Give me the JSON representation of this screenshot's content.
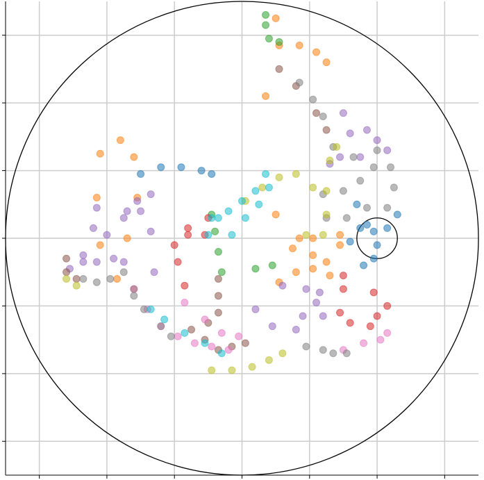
{
  "chart_data": {
    "type": "scatter",
    "title": "",
    "xlabel": "",
    "ylabel": "",
    "xlim": [
      -3.5,
      3.5
    ],
    "ylim": [
      -3.5,
      3.5
    ],
    "grid": true,
    "legend": "none",
    "x_ticks": [
      -3,
      -2,
      -1,
      0,
      1,
      2,
      3
    ],
    "y_ticks": [
      -3,
      -2,
      -1,
      0,
      1,
      2,
      3
    ],
    "tick_labels_visible": false,
    "boundary_circle": {
      "center": [
        0,
        0
      ],
      "radius": 3.5,
      "color": "#000000"
    },
    "marker_circle": {
      "center": [
        2.0,
        0.0
      ],
      "radius": 0.3,
      "color": "#000000"
    },
    "point_alpha": 0.55,
    "series": [
      {
        "color": "#1f77b4",
        "points": [
          [
            -1.5,
            0.95
          ],
          [
            -1.2,
            1.05
          ],
          [
            -0.9,
            1.05
          ],
          [
            -0.6,
            1.0
          ],
          [
            -0.45,
            0.95
          ],
          [
            1.7,
            0.5
          ],
          [
            1.85,
            0.2
          ],
          [
            2.0,
            -0.1
          ],
          [
            1.95,
            -0.3
          ],
          [
            1.8,
            -0.4
          ],
          [
            1.6,
            -0.05
          ],
          [
            1.75,
            0.15
          ],
          [
            1.95,
            0.1
          ],
          [
            2.15,
            0.15
          ],
          [
            2.3,
            0.35
          ]
        ]
      },
      {
        "color": "#ff7f0e",
        "points": [
          [
            0.5,
            3.25
          ],
          [
            0.55,
            2.85
          ],
          [
            0.85,
            2.85
          ],
          [
            1.1,
            2.75
          ],
          [
            1.25,
            2.6
          ],
          [
            0.35,
            2.1
          ],
          [
            -2.1,
            -0.1
          ],
          [
            -2.15,
            0.6
          ],
          [
            -2.1,
            1.25
          ],
          [
            -1.8,
            1.45
          ],
          [
            -1.6,
            1.2
          ],
          [
            -1.55,
            0.6
          ],
          [
            -1.7,
            0.0
          ],
          [
            -1.85,
            -0.6
          ],
          [
            -1.6,
            -0.75
          ],
          [
            0.5,
            0.35
          ],
          [
            0.85,
            0.0
          ],
          [
            1.05,
            -0.25
          ],
          [
            1.25,
            -0.35
          ],
          [
            1.45,
            -0.1
          ],
          [
            1.45,
            0.05
          ],
          [
            1.05,
            0.0
          ],
          [
            0.75,
            -0.15
          ],
          [
            0.55,
            -0.65
          ],
          [
            0.8,
            -0.5
          ],
          [
            1.05,
            -0.45
          ],
          [
            1.3,
            -0.55
          ]
        ]
      },
      {
        "color": "#2ca02c",
        "points": [
          [
            0.35,
            3.3
          ],
          [
            0.35,
            3.15
          ],
          [
            0.4,
            2.95
          ],
          [
            0.55,
            2.9
          ],
          [
            -0.45,
            0.35
          ],
          [
            -0.4,
            0.1
          ],
          [
            -0.35,
            -0.2
          ],
          [
            -0.3,
            -0.5
          ],
          [
            0.2,
            -0.45
          ],
          [
            0.45,
            -0.4
          ]
        ]
      },
      {
        "color": "#d62728",
        "points": [
          [
            -0.5,
            0.3
          ],
          [
            -0.8,
            0.15
          ],
          [
            -1.0,
            -0.1
          ],
          [
            -0.8,
            0.05
          ],
          [
            -0.55,
            0.05
          ],
          [
            -0.95,
            -0.35
          ],
          [
            -0.85,
            -0.7
          ],
          [
            1.5,
            -0.55
          ],
          [
            1.95,
            -0.8
          ],
          [
            2.15,
            -1.0
          ],
          [
            2.0,
            -1.15
          ],
          [
            1.9,
            -1.3
          ],
          [
            1.6,
            -1.25
          ],
          [
            1.45,
            -1.1
          ],
          [
            1.5,
            -0.75
          ]
        ]
      },
      {
        "color": "#9467bd",
        "points": [
          [
            -2.15,
            -0.35
          ],
          [
            -1.9,
            -0.3
          ],
          [
            -1.7,
            0.4
          ],
          [
            -1.5,
            0.4
          ],
          [
            -1.35,
            0.1
          ],
          [
            -1.75,
            -0.35
          ],
          [
            -1.6,
            -0.75
          ],
          [
            -1.3,
            -0.5
          ],
          [
            -2.35,
            -0.35
          ],
          [
            -2.55,
            -0.45
          ],
          [
            -2.35,
            -0.25
          ],
          [
            -2.0,
            0.05
          ],
          [
            -1.75,
            0.3
          ],
          [
            -1.55,
            0.55
          ],
          [
            -1.35,
            0.65
          ],
          [
            -2.15,
            0.45
          ],
          [
            -2.2,
            0.15
          ],
          [
            1.5,
            1.85
          ],
          [
            1.6,
            1.55
          ],
          [
            1.85,
            1.6
          ],
          [
            2.0,
            1.45
          ],
          [
            2.15,
            1.3
          ],
          [
            1.75,
            1.2
          ],
          [
            1.45,
            1.2
          ],
          [
            1.3,
            1.1
          ],
          [
            0.6,
            -0.7
          ],
          [
            0.95,
            -0.75
          ],
          [
            1.15,
            -0.8
          ],
          [
            1.1,
            -0.95
          ],
          [
            0.9,
            -1.15
          ],
          [
            0.45,
            -1.3
          ],
          [
            0.2,
            -1.05
          ],
          [
            0.8,
            -1.35
          ],
          [
            1.2,
            -1.15
          ]
        ]
      },
      {
        "color": "#8c564b",
        "points": [
          [
            0.55,
            2.5
          ],
          [
            0.8,
            2.25
          ],
          [
            1.1,
            1.85
          ],
          [
            1.25,
            1.6
          ],
          [
            -2.6,
            -0.3
          ],
          [
            -2.6,
            -0.5
          ],
          [
            -2.45,
            -0.6
          ],
          [
            -0.35,
            -0.6
          ],
          [
            -0.35,
            -0.85
          ],
          [
            -0.35,
            -1.1
          ],
          [
            -0.5,
            -1.25
          ],
          [
            -0.75,
            -1.35
          ],
          [
            -0.55,
            -1.5
          ],
          [
            -0.35,
            -1.65
          ],
          [
            -0.15,
            -1.6
          ],
          [
            0.05,
            -1.55
          ]
        ]
      },
      {
        "color": "#e377c2",
        "points": [
          [
            -1.4,
            -1.05
          ],
          [
            -1.2,
            -1.3
          ],
          [
            -0.95,
            -1.45
          ],
          [
            -0.7,
            -1.55
          ],
          [
            -0.45,
            -1.6
          ],
          [
            -0.2,
            -1.65
          ],
          [
            -0.85,
            -0.95
          ],
          [
            -0.55,
            -1.2
          ],
          [
            -0.3,
            -1.4
          ],
          [
            -0.05,
            -1.45
          ],
          [
            1.5,
            -1.65
          ],
          [
            1.8,
            -1.55
          ],
          [
            2.05,
            -1.5
          ],
          [
            2.15,
            -1.4
          ]
        ]
      },
      {
        "color": "#7f7f7f",
        "points": [
          [
            -2.35,
            -0.6
          ],
          [
            -2.15,
            -0.65
          ],
          [
            -1.95,
            -0.6
          ],
          [
            -1.75,
            -0.5
          ],
          [
            -1.6,
            -0.85
          ],
          [
            -1.45,
            -1.05
          ],
          [
            -1.2,
            -1.3
          ],
          [
            -1.05,
            -1.45
          ],
          [
            0.95,
            -1.6
          ],
          [
            1.2,
            -1.65
          ],
          [
            1.35,
            -1.7
          ],
          [
            1.55,
            -1.7
          ],
          [
            0.85,
            2.3
          ],
          [
            1.05,
            2.05
          ],
          [
            1.2,
            1.8
          ],
          [
            1.35,
            1.35
          ],
          [
            1.65,
            1.2
          ],
          [
            2.0,
            1.3
          ],
          [
            2.2,
            1.05
          ],
          [
            2.25,
            0.75
          ],
          [
            2.15,
            0.45
          ],
          [
            1.85,
            0.45
          ],
          [
            1.55,
            0.3
          ],
          [
            1.25,
            0.3
          ],
          [
            1.2,
            0.65
          ],
          [
            1.5,
            0.7
          ],
          [
            1.75,
            0.85
          ],
          [
            1.95,
            1.05
          ]
        ]
      },
      {
        "color": "#bcbd22",
        "points": [
          [
            -2.6,
            -0.6
          ],
          [
            -2.45,
            -0.7
          ],
          [
            -0.45,
            -1.95
          ],
          [
            -0.15,
            -1.95
          ],
          [
            0.15,
            -1.9
          ],
          [
            0.4,
            -1.8
          ],
          [
            0.6,
            -1.7
          ],
          [
            0.95,
            0.05
          ],
          [
            1.2,
            0.05
          ],
          [
            1.25,
            0.35
          ],
          [
            1.25,
            0.7
          ],
          [
            1.3,
            1.15
          ],
          [
            1.4,
            1.35
          ],
          [
            1.05,
            0.75
          ],
          [
            0.8,
            0.95
          ],
          [
            0.55,
            0.9
          ],
          [
            0.3,
            0.75
          ],
          [
            0.05,
            0.55
          ]
        ]
      },
      {
        "color": "#17becf",
        "points": [
          [
            -1.35,
            -1.05
          ],
          [
            -1.15,
            -1.2
          ],
          [
            -0.85,
            -1.4
          ],
          [
            -0.55,
            -1.55
          ],
          [
            -0.3,
            -1.7
          ],
          [
            -0.45,
            0.3
          ],
          [
            -0.5,
            0.05
          ],
          [
            -0.35,
            0.3
          ],
          [
            -0.2,
            0.4
          ],
          [
            0.0,
            0.55
          ],
          [
            0.2,
            0.7
          ],
          [
            0.35,
            0.95
          ],
          [
            0.4,
            0.75
          ],
          [
            0.25,
            0.5
          ],
          [
            0.05,
            0.3
          ],
          [
            -0.15,
            0.05
          ]
        ]
      }
    ]
  }
}
